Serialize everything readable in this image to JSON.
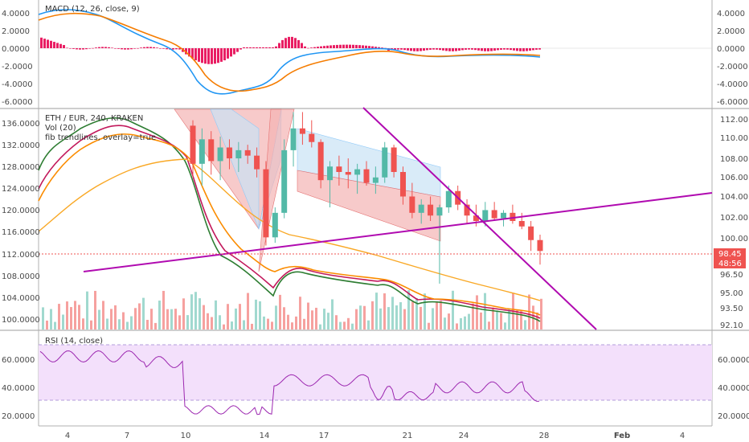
{
  "colors": {
    "up": "#53b9a7",
    "down": "#ef5350",
    "macd_line": "#2196f3",
    "signal_line": "#f57c00",
    "histogram": "#e91e63",
    "ma_fast": "#2e7d32",
    "ma_mid": "#c2185b",
    "ma_slow": "#fb8c00",
    "ma_long": "#f9a825",
    "trendline": "#b00ab0",
    "price_line": "#ef5350",
    "rsi_line": "#9c27b0",
    "rsi_band": "#f3e0fb",
    "pattern_red": "#f4b3b3",
    "pattern_blue": "#c9e3f5"
  },
  "macd": {
    "title": "MACD (12, 26, close, 9)",
    "axis_labels": [
      "4.0000",
      "2.0000",
      "0.0000",
      "-2.0000",
      "-4.0000",
      "-6.0000"
    ]
  },
  "main": {
    "symbol": "ETH / EUR, 240, KRAKEN",
    "vol": "Vol (20)",
    "fib": "fib trendlines, overlay=true",
    "left_axis": [
      "136.0000",
      "132.0000",
      "128.0000",
      "124.0000",
      "120.0000",
      "116.0000",
      "112.0000",
      "108.0000",
      "104.0000",
      "100.0000"
    ],
    "right_axis": [
      "112.00",
      "110.00",
      "108.00",
      "106.00",
      "104.00",
      "102.00",
      "100.00",
      "96.50",
      "95.00",
      "93.50",
      "92.10"
    ],
    "price_tag": "98.45",
    "time_tag": "48:56"
  },
  "rsi": {
    "title": "RSI (14, close)",
    "left_axis": [
      "60.0000",
      "40.0000",
      "20.0000"
    ],
    "right_axis": [
      "60.0000",
      "40.0000",
      "20.0000"
    ]
  },
  "x_axis": [
    "4",
    "7",
    "10",
    "14",
    "17",
    "21",
    "24",
    "28",
    "Feb",
    "4"
  ],
  "chart_data": {
    "type": "candlestick",
    "symbol": "ETH / EUR, 240, KRAKEN",
    "x_ticks": [
      "4",
      "7",
      "10",
      "14",
      "17",
      "21",
      "24",
      "28",
      "Feb",
      "4"
    ],
    "last_price": 98.45,
    "price_range_left": [
      98,
      138
    ],
    "price_range_right": [
      91.5,
      113
    ],
    "candles": [
      {
        "t": "10",
        "o": 135.5,
        "h": 136.5,
        "l": 126.0,
        "c": 128.5
      },
      {
        "t": "10",
        "o": 128.5,
        "h": 135.0,
        "l": 124.5,
        "c": 133.0
      },
      {
        "t": "11",
        "o": 133.0,
        "h": 134.5,
        "l": 126.5,
        "c": 129.0
      },
      {
        "t": "11",
        "o": 129.0,
        "h": 133.5,
        "l": 125.5,
        "c": 131.5
      },
      {
        "t": "12",
        "o": 131.5,
        "h": 133.0,
        "l": 127.5,
        "c": 129.5
      },
      {
        "t": "12",
        "o": 129.5,
        "h": 132.5,
        "l": 127.0,
        "c": 131.0
      },
      {
        "t": "13",
        "o": 131.0,
        "h": 132.0,
        "l": 128.5,
        "c": 130.0
      },
      {
        "t": "13",
        "o": 130.0,
        "h": 131.5,
        "l": 126.0,
        "c": 127.5
      },
      {
        "t": "13",
        "o": 127.5,
        "h": 129.0,
        "l": 113.5,
        "c": 115.0
      },
      {
        "t": "14",
        "o": 115.0,
        "h": 120.5,
        "l": 114.0,
        "c": 119.5
      },
      {
        "t": "14",
        "o": 119.5,
        "h": 133.0,
        "l": 118.5,
        "c": 131.0
      },
      {
        "t": "14",
        "o": 131.0,
        "h": 138.0,
        "l": 128.0,
        "c": 135.0
      },
      {
        "t": "15",
        "o": 135.0,
        "h": 138.0,
        "l": 132.0,
        "c": 134.0
      },
      {
        "t": "15",
        "o": 134.0,
        "h": 136.5,
        "l": 131.5,
        "c": 132.5
      },
      {
        "t": "16",
        "o": 132.5,
        "h": 133.0,
        "l": 124.0,
        "c": 125.5
      },
      {
        "t": "16",
        "o": 125.5,
        "h": 129.0,
        "l": 120.5,
        "c": 128.0
      },
      {
        "t": "17",
        "o": 128.0,
        "h": 130.0,
        "l": 124.5,
        "c": 127.0
      },
      {
        "t": "17",
        "o": 127.0,
        "h": 129.5,
        "l": 124.0,
        "c": 126.5
      },
      {
        "t": "18",
        "o": 126.5,
        "h": 128.5,
        "l": 123.0,
        "c": 127.5
      },
      {
        "t": "18",
        "o": 127.5,
        "h": 129.0,
        "l": 124.5,
        "c": 125.0
      },
      {
        "t": "19",
        "o": 125.0,
        "h": 128.0,
        "l": 123.0,
        "c": 126.0
      },
      {
        "t": "19",
        "o": 126.0,
        "h": 132.5,
        "l": 125.0,
        "c": 131.5
      },
      {
        "t": "19",
        "o": 131.5,
        "h": 132.0,
        "l": 126.0,
        "c": 127.0
      },
      {
        "t": "20",
        "o": 127.0,
        "h": 128.0,
        "l": 121.0,
        "c": 122.5
      },
      {
        "t": "20",
        "o": 122.5,
        "h": 125.0,
        "l": 118.5,
        "c": 119.5
      },
      {
        "t": "21",
        "o": 119.5,
        "h": 122.0,
        "l": 117.5,
        "c": 121.0
      },
      {
        "t": "21",
        "o": 121.0,
        "h": 122.5,
        "l": 118.0,
        "c": 119.0
      },
      {
        "t": "22",
        "o": 119.0,
        "h": 121.0,
        "l": 106.5,
        "c": 120.5
      },
      {
        "t": "22",
        "o": 120.5,
        "h": 124.5,
        "l": 119.5,
        "c": 123.5
      },
      {
        "t": "23",
        "o": 123.5,
        "h": 124.5,
        "l": 120.0,
        "c": 121.0
      },
      {
        "t": "23",
        "o": 121.0,
        "h": 122.0,
        "l": 117.5,
        "c": 119.0
      },
      {
        "t": "24",
        "o": 119.0,
        "h": 121.0,
        "l": 117.0,
        "c": 118.0
      },
      {
        "t": "24",
        "o": 118.0,
        "h": 121.5,
        "l": 117.0,
        "c": 120.0
      },
      {
        "t": "25",
        "o": 120.0,
        "h": 121.5,
        "l": 118.0,
        "c": 118.5
      },
      {
        "t": "25",
        "o": 118.5,
        "h": 120.0,
        "l": 117.0,
        "c": 119.5
      },
      {
        "t": "26",
        "o": 119.5,
        "h": 121.0,
        "l": 117.5,
        "c": 118.0
      },
      {
        "t": "26",
        "o": 118.0,
        "h": 119.5,
        "l": 116.5,
        "c": 117.0
      },
      {
        "t": "27",
        "o": 117.0,
        "h": 118.0,
        "l": 112.5,
        "c": 114.5
      },
      {
        "t": "27",
        "o": 114.5,
        "h": 115.5,
        "l": 110.0,
        "c": 112.5
      }
    ],
    "indicators": {
      "macd": {
        "range": [
          -6.5,
          4.5
        ]
      },
      "rsi": {
        "range": [
          14,
          76
        ],
        "bands": [
          70,
          30
        ]
      }
    }
  }
}
